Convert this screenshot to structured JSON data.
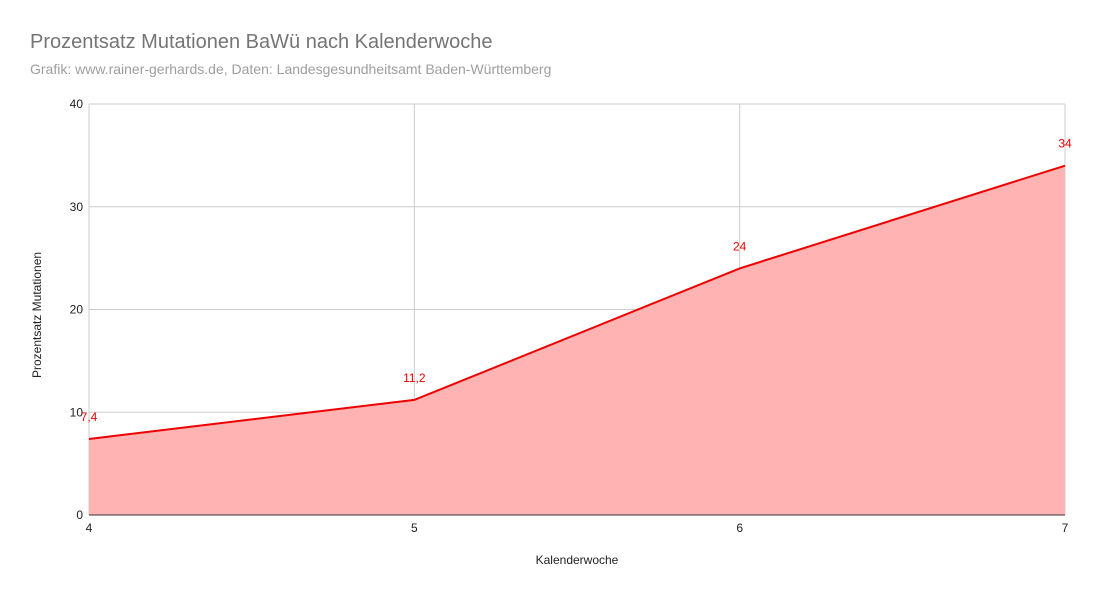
{
  "chart_data": {
    "type": "area",
    "title": "Prozentsatz Mutationen BaWü nach Kalenderwoche",
    "subtitle": "Grafik: www.rainer-gerhards.de, Daten: Landesgesundheitsamt Baden-Württemberg",
    "xlabel": "Kalenderwoche",
    "ylabel": "Prozentsatz Mutationen",
    "x": [
      4,
      5,
      6,
      7
    ],
    "values": [
      7.4,
      11.2,
      24,
      34
    ],
    "data_labels": [
      "7,4",
      "11,2",
      "24",
      "34"
    ],
    "xlim": [
      4,
      7
    ],
    "ylim": [
      0,
      40
    ],
    "x_ticks": [
      "4",
      "5",
      "6",
      "7"
    ],
    "y_ticks": [
      "0",
      "10",
      "20",
      "30",
      "40"
    ],
    "grid": true,
    "legend": "none",
    "colors": {
      "line": "#ee0000",
      "fill": "#ffb3b3",
      "grid": "#cccccc"
    }
  }
}
